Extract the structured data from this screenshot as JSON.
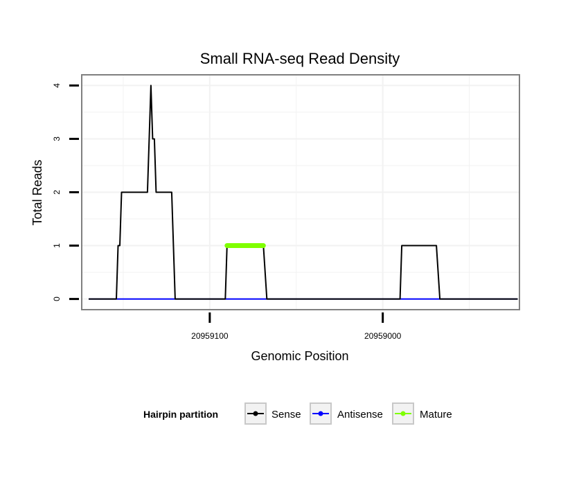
{
  "chart_data": {
    "type": "line",
    "title": "Small RNA-seq Read Density",
    "xlabel": "Genomic Position",
    "ylabel": "Total Reads",
    "x_reversed": true,
    "xlim": [
      20959174,
      20958921
    ],
    "ylim": [
      -0.2,
      4.2
    ],
    "yticks": [
      0,
      1,
      2,
      3,
      4
    ],
    "ytick_labels": [
      "0",
      "1",
      "2",
      "3",
      "4"
    ],
    "xticks": [
      20959100,
      20959000
    ],
    "xtick_labels": [
      "20959100",
      "20959000"
    ],
    "grid": true,
    "legend": {
      "title": "Hairpin partition",
      "position": "bottom",
      "entries": [
        {
          "label": "Sense",
          "color": "#000000"
        },
        {
          "label": "Antisense",
          "color": "#0000ff"
        },
        {
          "label": "Mature",
          "color": "#7fff00"
        }
      ]
    },
    "series": [
      {
        "name": "Sense",
        "color": "#000000",
        "x": [
          20959170,
          20959154,
          20959153,
          20959152,
          20959151,
          20959136,
          20959134,
          20959133,
          20959132,
          20959131,
          20959130,
          20959122,
          20959120,
          20959091,
          20959090,
          20959069,
          20959067,
          20958990,
          20958989,
          20958969,
          20958967,
          20958922
        ],
        "y": [
          0,
          0,
          1,
          1,
          2,
          2,
          4,
          3,
          3,
          2,
          2,
          2,
          0,
          0,
          1,
          1,
          0,
          0,
          1,
          1,
          0,
          0
        ]
      },
      {
        "name": "Antisense",
        "color": "#0000ff",
        "x": [
          20959170,
          20958922
        ],
        "y": [
          0,
          0
        ]
      },
      {
        "name": "Mature",
        "color": "#7fff00",
        "x": [
          20959090,
          20959069
        ],
        "y": [
          1,
          1
        ]
      }
    ]
  }
}
